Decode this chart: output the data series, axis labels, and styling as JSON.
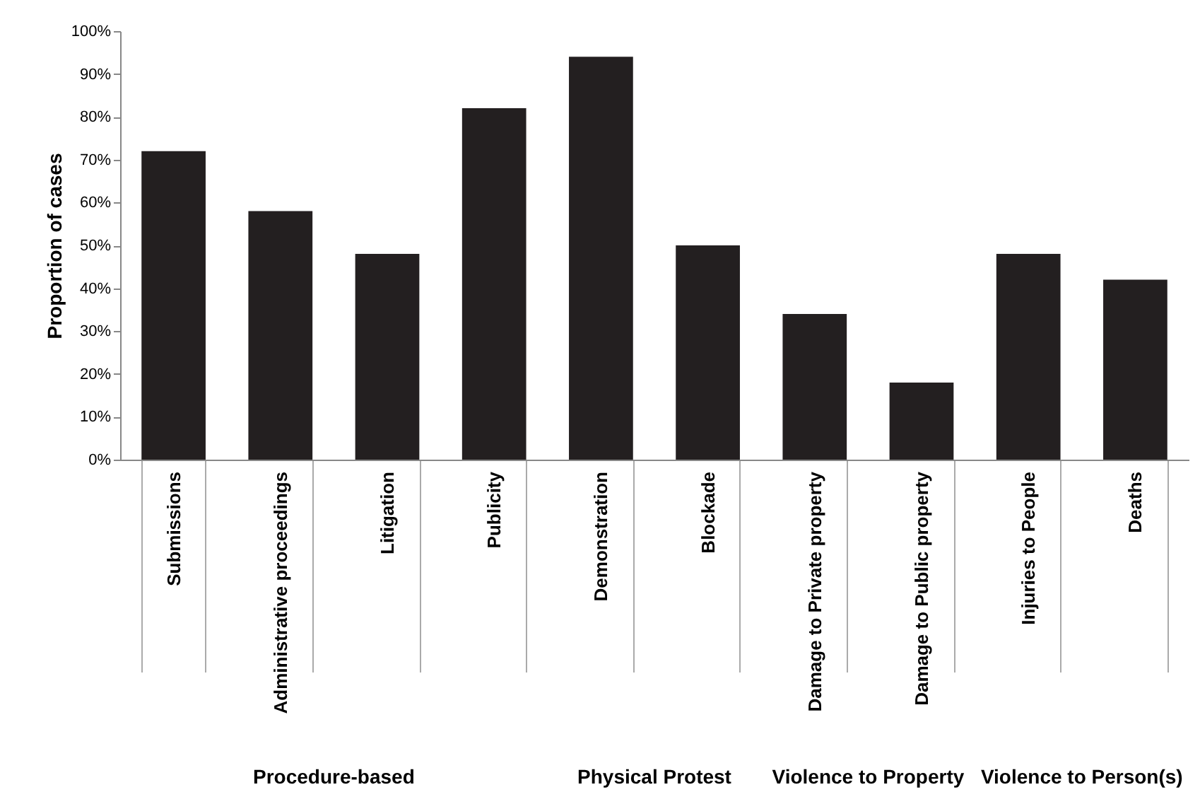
{
  "chart_data": {
    "type": "bar",
    "ylabel": "Proportion of cases",
    "categories": [
      "Submissions",
      "Administrative proceedings",
      "Litigation",
      "Publicity",
      "Demonstration",
      "Blockade",
      "Damage to Private property",
      "Damage to Public property",
      "Injuries to People",
      "Deaths"
    ],
    "values": [
      72,
      58,
      48,
      82,
      94,
      50,
      34,
      18,
      48,
      42
    ],
    "color": "#231f20",
    "ylim": [
      0,
      100
    ],
    "yticks": [
      {
        "value": 0,
        "label": "0%"
      },
      {
        "value": 10,
        "label": "10%"
      },
      {
        "value": 20,
        "label": "20%"
      },
      {
        "value": 30,
        "label": "30%"
      },
      {
        "value": 40,
        "label": "40%"
      },
      {
        "value": 50,
        "label": "50%"
      },
      {
        "value": 60,
        "label": "60%"
      },
      {
        "value": 70,
        "label": "70%"
      },
      {
        "value": 80,
        "label": "80%"
      },
      {
        "value": 90,
        "label": "90%"
      },
      {
        "value": 100,
        "label": "100%"
      }
    ],
    "grid": false,
    "annotations": [
      "Procedure-based",
      "Physical Protest",
      "Violence to Property",
      "Violence to Person(s)"
    ]
  }
}
